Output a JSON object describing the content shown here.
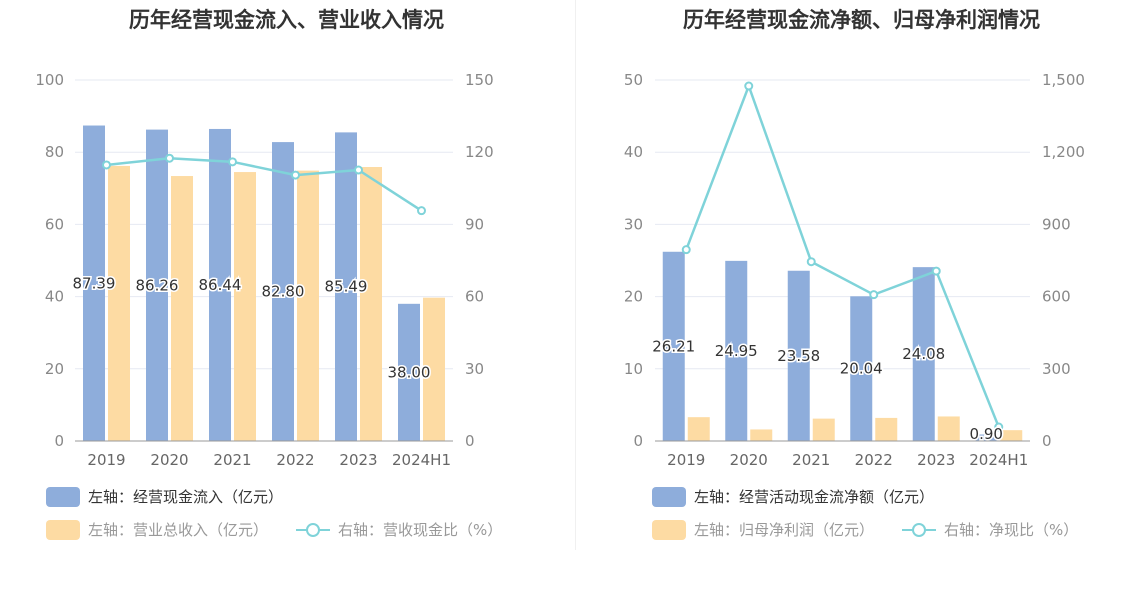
{
  "colors": {
    "bar_left": "#8eaddb",
    "bar_right": "#fddba3",
    "line": "#7fd3d9",
    "grid": "#e6e9f2",
    "axis": "#999999"
  },
  "chart_data": [
    {
      "type": "bar",
      "title": "历年经营现金流入、营业收入情况",
      "categories": [
        "2019",
        "2020",
        "2021",
        "2022",
        "2023",
        "2024H1"
      ],
      "y_left": {
        "min": 0,
        "max": 100,
        "ticks": [
          "0",
          "20",
          "40",
          "60",
          "80",
          "100"
        ]
      },
      "y_right": {
        "min": 0,
        "max": 150,
        "ticks": [
          "0",
          "30",
          "60",
          "90",
          "120",
          "150"
        ]
      },
      "series": [
        {
          "name": "左轴：经营现金流入（亿元）",
          "axis": "left",
          "kind": "bar",
          "values": [
            87.39,
            86.26,
            86.44,
            82.8,
            85.49,
            38.0
          ],
          "labels": [
            "87.39",
            "86.26",
            "86.44",
            "82.80",
            "85.49",
            "38.00"
          ]
        },
        {
          "name": "左轴：营业总收入（亿元）",
          "axis": "left",
          "kind": "bar",
          "values": [
            76.2,
            73.4,
            74.5,
            74.9,
            75.9,
            39.7
          ]
        },
        {
          "name": "右轴：营收现金比（%）",
          "axis": "right",
          "kind": "line",
          "values": [
            114.7,
            117.5,
            116.0,
            110.5,
            112.6,
            95.7
          ]
        }
      ]
    },
    {
      "type": "bar",
      "title": "历年经营现金流净额、归母净利润情况",
      "categories": [
        "2019",
        "2020",
        "2021",
        "2022",
        "2023",
        "2024H1"
      ],
      "y_left": {
        "min": 0,
        "max": 50,
        "ticks": [
          "0",
          "10",
          "20",
          "30",
          "40",
          "50"
        ]
      },
      "y_right": {
        "min": 0,
        "max": 1500,
        "ticks": [
          "0",
          "300",
          "600",
          "900",
          "1,200",
          "1,500"
        ]
      },
      "series": [
        {
          "name": "左轴：经营活动现金流净额（亿元）",
          "axis": "left",
          "kind": "bar",
          "values": [
            26.21,
            24.95,
            23.58,
            20.04,
            24.08,
            0.9
          ],
          "labels": [
            "26.21",
            "24.95",
            "23.58",
            "20.04",
            "24.08",
            "0.90"
          ]
        },
        {
          "name": "左轴：归母净利润（亿元）",
          "axis": "left",
          "kind": "bar",
          "values": [
            3.3,
            1.6,
            3.1,
            3.2,
            3.4,
            1.5
          ]
        },
        {
          "name": "右轴：净现比（%）",
          "axis": "right",
          "kind": "line",
          "values": [
            795,
            1475,
            745,
            608,
            706,
            58
          ]
        }
      ]
    }
  ]
}
